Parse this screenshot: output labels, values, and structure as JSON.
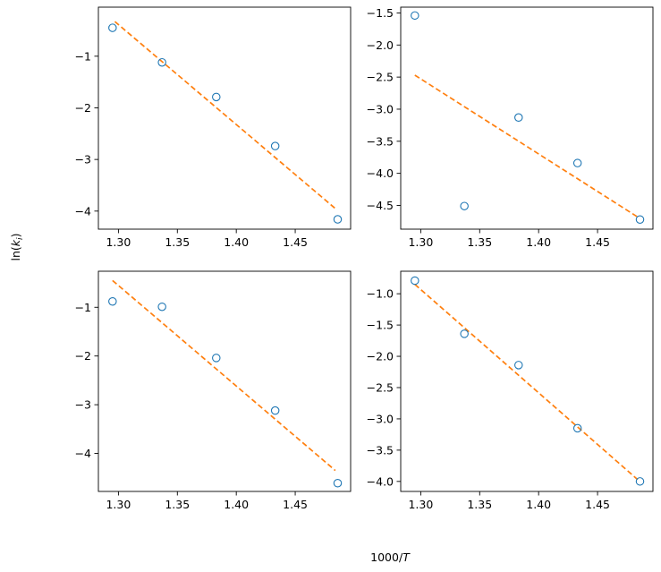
{
  "colors": {
    "points": "#1f77b4",
    "fit": "#ff7f0e"
  },
  "labels": {
    "x_prefix": "1000/",
    "x_var": "T",
    "y_func": "ln(",
    "y_var": "k",
    "y_sub": "i",
    "y_close": ")"
  },
  "chart_data": [
    {
      "type": "scatter",
      "x": [
        1.295,
        1.337,
        1.383,
        1.433,
        1.486
      ],
      "y": [
        -0.45,
        -1.12,
        -1.79,
        -2.74,
        -4.16
      ],
      "fit": {
        "x": [
          1.297,
          1.484
        ],
        "y": [
          -0.33,
          -3.95
        ]
      },
      "xlim": [
        1.283,
        1.497
      ],
      "ylim": [
        -4.35,
        -0.05
      ],
      "xticks": [
        1.3,
        1.35,
        1.4,
        1.45
      ],
      "xtick_labels": [
        "1.30",
        "1.35",
        "1.40",
        "1.45"
      ],
      "yticks": [
        -1,
        -2,
        -3,
        -4
      ],
      "ytick_labels": [
        "−1",
        "−2",
        "−3",
        "−4"
      ]
    },
    {
      "type": "scatter",
      "x": [
        1.295,
        1.337,
        1.383,
        1.433,
        1.486
      ],
      "y": [
        -1.54,
        -4.51,
        -3.13,
        -3.84,
        -4.72
      ],
      "fit": {
        "x": [
          1.295,
          1.484
        ],
        "y": [
          -2.47,
          -4.68
        ]
      },
      "xlim": [
        1.283,
        1.497
      ],
      "ylim": [
        -4.87,
        -1.41
      ],
      "xticks": [
        1.3,
        1.35,
        1.4,
        1.45
      ],
      "xtick_labels": [
        "1.30",
        "1.35",
        "1.40",
        "1.45"
      ],
      "yticks": [
        -1.5,
        -2.0,
        -2.5,
        -3.0,
        -3.5,
        -4.0,
        -4.5
      ],
      "ytick_labels": [
        "−1.5",
        "−2.0",
        "−2.5",
        "−3.0",
        "−3.5",
        "−4.0",
        "−4.5"
      ]
    },
    {
      "type": "scatter",
      "x": [
        1.295,
        1.337,
        1.383,
        1.433,
        1.486
      ],
      "y": [
        -0.88,
        -0.99,
        -2.04,
        -3.12,
        -4.61
      ],
      "fit": {
        "x": [
          1.295,
          1.484
        ],
        "y": [
          -0.45,
          -4.35
        ]
      },
      "xlim": [
        1.283,
        1.497
      ],
      "ylim": [
        -4.78,
        -0.26
      ],
      "xticks": [
        1.3,
        1.35,
        1.4,
        1.45
      ],
      "xtick_labels": [
        "1.30",
        "1.35",
        "1.40",
        "1.45"
      ],
      "yticks": [
        -1,
        -2,
        -3,
        -4
      ],
      "ytick_labels": [
        "−1",
        "−2",
        "−3",
        "−4"
      ]
    },
    {
      "type": "scatter",
      "x": [
        1.295,
        1.337,
        1.383,
        1.433,
        1.486
      ],
      "y": [
        -0.79,
        -1.64,
        -2.14,
        -3.15,
        -4.0
      ],
      "fit": {
        "x": [
          1.295,
          1.484
        ],
        "y": [
          -0.85,
          -3.97
        ]
      },
      "xlim": [
        1.283,
        1.497
      ],
      "ylim": [
        -4.16,
        -0.64
      ],
      "xticks": [
        1.3,
        1.35,
        1.4,
        1.45
      ],
      "xtick_labels": [
        "1.30",
        "1.35",
        "1.40",
        "1.45"
      ],
      "yticks": [
        -1.0,
        -1.5,
        -2.0,
        -2.5,
        -3.0,
        -3.5,
        -4.0
      ],
      "ytick_labels": [
        "−1.0",
        "−1.5",
        "−2.0",
        "−2.5",
        "−3.0",
        "−3.5",
        "−4.0"
      ]
    }
  ]
}
